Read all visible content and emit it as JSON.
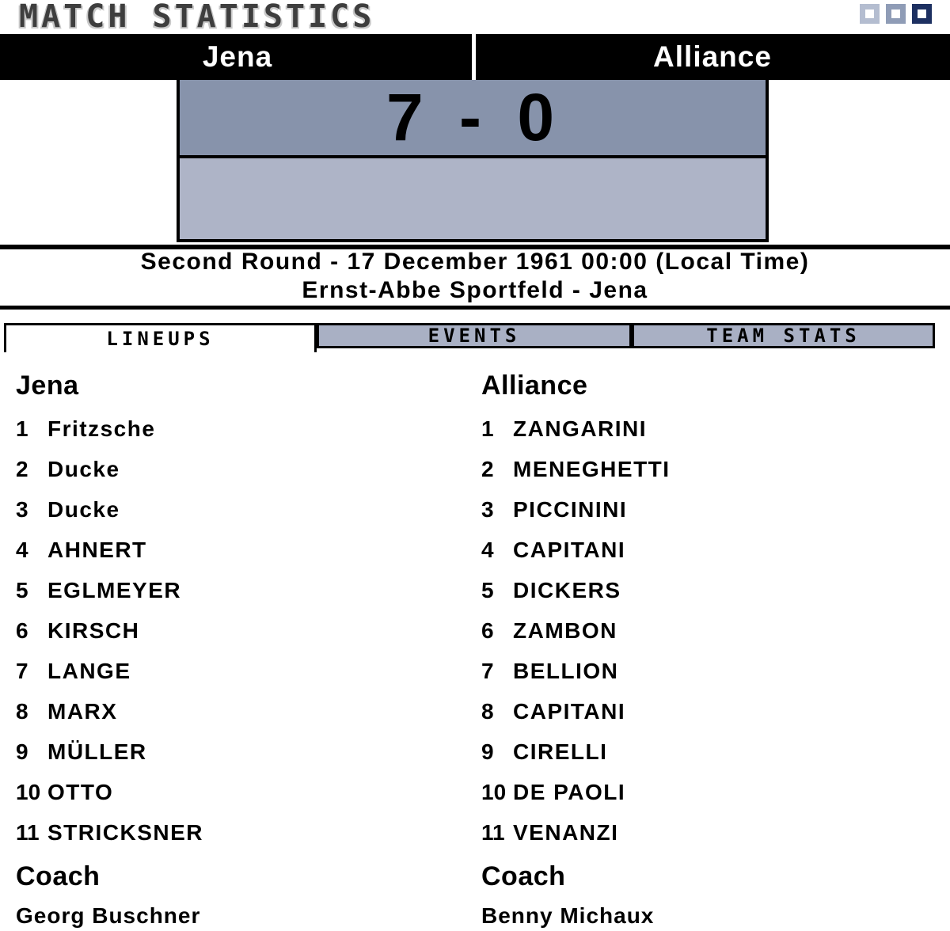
{
  "title": "MATCH STATISTICS",
  "window_controls": {
    "square_colors": [
      "#b4bdd0",
      "#8f9cb6",
      "#1d3061"
    ]
  },
  "header": {
    "home_team": "Jena",
    "away_team": "Alliance"
  },
  "score": {
    "home": 7,
    "away": 0,
    "display": "7 - 0"
  },
  "match_info": {
    "round_and_date": "Second Round - 17 December 1961 00:00 (Local Time)",
    "venue": "Ernst-Abbe Sportfeld - Jena"
  },
  "tabs": [
    {
      "label": "LINEUPS",
      "active": true
    },
    {
      "label": "EVENTS",
      "active": false
    },
    {
      "label": "TEAM STATS",
      "active": false
    }
  ],
  "lineups": {
    "home": {
      "team": "Jena",
      "players": [
        {
          "number": 1,
          "name": "Fritzsche"
        },
        {
          "number": 2,
          "name": "Ducke"
        },
        {
          "number": 3,
          "name": "Ducke"
        },
        {
          "number": 4,
          "name": "AHNERT"
        },
        {
          "number": 5,
          "name": "EGLMEYER"
        },
        {
          "number": 6,
          "name": "KIRSCH"
        },
        {
          "number": 7,
          "name": "LANGE"
        },
        {
          "number": 8,
          "name": "MARX"
        },
        {
          "number": 9,
          "name": "MÜLLER"
        },
        {
          "number": 10,
          "name": "OTTO"
        },
        {
          "number": 11,
          "name": "STRICKSNER"
        }
      ],
      "coach_label": "Coach",
      "coach_name": "Georg Buschner"
    },
    "away": {
      "team": "Alliance",
      "players": [
        {
          "number": 1,
          "name": "ZANGARINI"
        },
        {
          "number": 2,
          "name": "MENEGHETTI"
        },
        {
          "number": 3,
          "name": "PICCININI"
        },
        {
          "number": 4,
          "name": "CAPITANI"
        },
        {
          "number": 5,
          "name": "DICKERS"
        },
        {
          "number": 6,
          "name": "ZAMBON"
        },
        {
          "number": 7,
          "name": "BELLION"
        },
        {
          "number": 8,
          "name": "CAPITANI"
        },
        {
          "number": 9,
          "name": "CIRELLI"
        },
        {
          "number": 10,
          "name": "DE PAOLI"
        },
        {
          "number": 11,
          "name": "VENANZI"
        }
      ],
      "coach_label": "Coach",
      "coach_name": "Benny Michaux"
    }
  },
  "colors": {
    "header_bar": "#000000",
    "score_panel_top": "#8793ab",
    "score_panel_bottom": "#aeb4c7",
    "tab_inactive": "#a9b0c4",
    "title_text": "#3e3e3e"
  }
}
